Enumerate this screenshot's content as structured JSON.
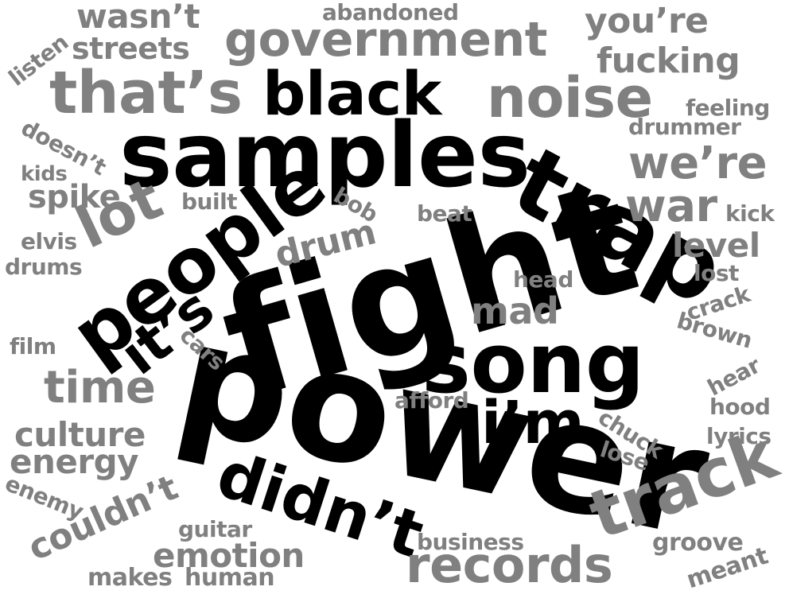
{
  "words": [
    {
      "text": "power",
      "color": "#000000"
    },
    {
      "text": "fight",
      "color": "#000000"
    },
    {
      "text": "samples",
      "color": "#000000"
    },
    {
      "text": "song",
      "color": "#000000"
    },
    {
      "text": "trap",
      "color": "#000000"
    },
    {
      "text": "people",
      "color": "#000000"
    },
    {
      "text": "black",
      "color": "#000000"
    },
    {
      "text": "didn’t",
      "color": "#000000"
    },
    {
      "text": "i’m",
      "color": "#000000"
    },
    {
      "text": "it’s",
      "color": "#000000"
    },
    {
      "text": "government",
      "color": "#808080"
    },
    {
      "text": "noise",
      "color": "#808080"
    },
    {
      "text": "that’s",
      "color": "#808080"
    },
    {
      "text": "track",
      "color": "#808080"
    },
    {
      "text": "records",
      "color": "#808080"
    },
    {
      "text": "lot",
      "color": "#808080"
    },
    {
      "text": "war",
      "color": "#808080"
    },
    {
      "text": "we’re",
      "color": "#808080"
    },
    {
      "text": "time",
      "color": "#808080"
    },
    {
      "text": "wasn’t",
      "color": "#808080"
    },
    {
      "text": "streets",
      "color": "#808080"
    },
    {
      "text": "you’re",
      "color": "#808080"
    },
    {
      "text": "fucking",
      "color": "#808080"
    },
    {
      "text": "mad",
      "color": "#808080"
    },
    {
      "text": "level",
      "color": "#808080"
    },
    {
      "text": "drum",
      "color": "#808080"
    },
    {
      "text": "spike",
      "color": "#808080"
    },
    {
      "text": "culture",
      "color": "#808080"
    },
    {
      "text": "energy",
      "color": "#808080"
    },
    {
      "text": "couldn’t",
      "color": "#808080"
    },
    {
      "text": "emotion",
      "color": "#808080"
    },
    {
      "text": "abandoned",
      "color": "#808080"
    },
    {
      "text": "feeling",
      "color": "#808080"
    },
    {
      "text": "drummer",
      "color": "#808080"
    },
    {
      "text": "listen",
      "color": "#808080"
    },
    {
      "text": "doesn’t",
      "color": "#808080"
    },
    {
      "text": "kids",
      "color": "#808080"
    },
    {
      "text": "built",
      "color": "#808080"
    },
    {
      "text": "bob",
      "color": "#808080"
    },
    {
      "text": "beat",
      "color": "#808080"
    },
    {
      "text": "kick",
      "color": "#808080"
    },
    {
      "text": "elvis",
      "color": "#808080"
    },
    {
      "text": "drums",
      "color": "#808080"
    },
    {
      "text": "head",
      "color": "#808080"
    },
    {
      "text": "lost",
      "color": "#808080"
    },
    {
      "text": "crack",
      "color": "#808080"
    },
    {
      "text": "brown",
      "color": "#808080"
    },
    {
      "text": "film",
      "color": "#808080"
    },
    {
      "text": "cars",
      "color": "#808080"
    },
    {
      "text": "hear",
      "color": "#808080"
    },
    {
      "text": "afford",
      "color": "#808080"
    },
    {
      "text": "hood",
      "color": "#808080"
    },
    {
      "text": "chuck",
      "color": "#808080"
    },
    {
      "text": "lyrics",
      "color": "#808080"
    },
    {
      "text": "lose",
      "color": "#808080"
    },
    {
      "text": "enemy",
      "color": "#808080"
    },
    {
      "text": "guitar",
      "color": "#808080"
    },
    {
      "text": "business",
      "color": "#808080"
    },
    {
      "text": "groove",
      "color": "#808080"
    },
    {
      "text": "meant",
      "color": "#808080"
    },
    {
      "text": "makes",
      "color": "#808080"
    },
    {
      "text": "human",
      "color": "#808080"
    }
  ]
}
